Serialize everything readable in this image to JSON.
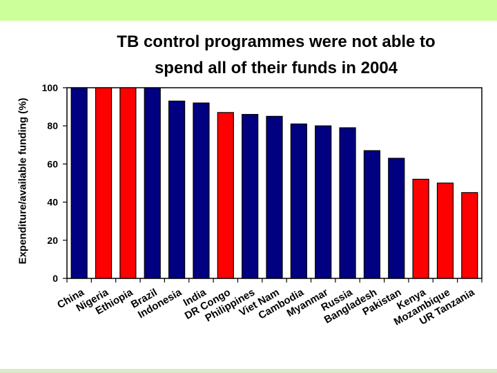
{
  "slide": {
    "title_line1": "TB control programmes were not able to",
    "title_line2": "spend all of their funds in 2004",
    "top_band_color": "#ccff99"
  },
  "chart_data": {
    "type": "bar",
    "title": "TB control programmes were not able to spend all of their funds in 2004",
    "xlabel": "",
    "ylabel": "Expenditure/available funding (%)",
    "ylim": [
      0,
      100
    ],
    "yticks": [
      0,
      20,
      40,
      60,
      80,
      100
    ],
    "grid": false,
    "legend": "none",
    "categories": [
      "China",
      "Nigeria",
      "Ethiopia",
      "Brazil",
      "Indonesia",
      "India",
      "DR Congo",
      "Philippines",
      "Viet Nam",
      "Cambodia",
      "Myanmar",
      "Russia",
      "Bangladesh",
      "Pakistan",
      "Kenya",
      "Mozambique",
      "UR Tanzania"
    ],
    "values": [
      100,
      100,
      100,
      100,
      93,
      92,
      87,
      86,
      85,
      81,
      80,
      79,
      67,
      63,
      52,
      50,
      45
    ],
    "bar_colors": [
      "#000080",
      "#ff0000",
      "#ff0000",
      "#000080",
      "#000080",
      "#000080",
      "#ff0000",
      "#000080",
      "#000080",
      "#000080",
      "#000080",
      "#000080",
      "#000080",
      "#000080",
      "#ff0000",
      "#ff0000",
      "#ff0000"
    ]
  }
}
